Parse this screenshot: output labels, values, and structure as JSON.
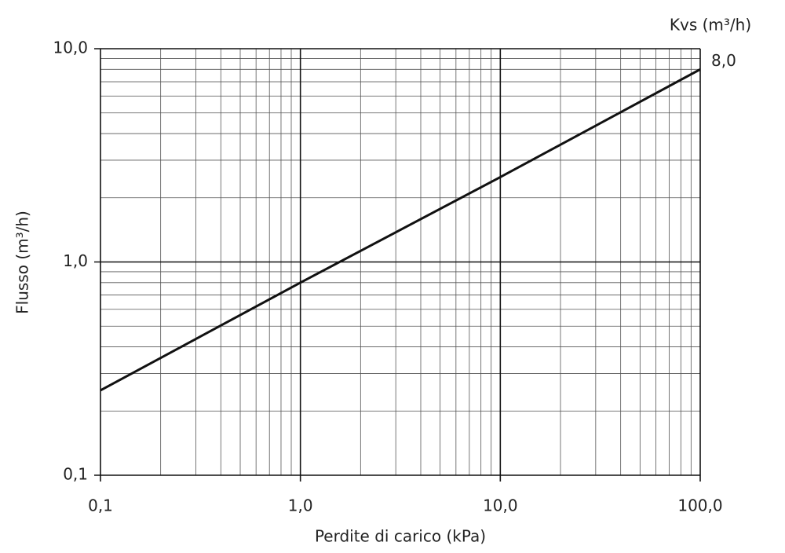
{
  "chart_data": {
    "type": "line",
    "log_x": true,
    "log_y": true,
    "grid": true,
    "xlabel": "Perdite di carico (kPa)",
    "ylabel": "Flusso (m³/h)",
    "annotation": "Kvs (m³/h)",
    "x": [
      0.1,
      1,
      10,
      100
    ],
    "values": [
      0.25,
      0.8,
      2.5,
      8.0
    ],
    "value_labels": [
      null,
      null,
      null,
      "8,0"
    ],
    "color": "#111111",
    "xlim": [
      0.1,
      100
    ],
    "ylim": [
      0.1,
      10
    ],
    "xticks": [
      {
        "value": 0.1,
        "label": "0,1"
      },
      {
        "value": 1,
        "label": "1,0"
      },
      {
        "value": 10,
        "label": "10,0"
      },
      {
        "value": 100,
        "label": "100,0"
      }
    ],
    "yticks": [
      {
        "value": 0.1,
        "label": "0,1"
      },
      {
        "value": 1,
        "label": "1,0"
      },
      {
        "value": 10,
        "label": "10,0"
      }
    ],
    "minor_xticks": [
      0.2,
      0.3,
      0.4,
      0.5,
      0.6,
      0.7,
      0.8,
      0.9,
      2,
      3,
      4,
      5,
      6,
      7,
      8,
      9,
      20,
      30,
      40,
      50,
      60,
      70,
      80,
      90
    ],
    "minor_yticks": [
      0.2,
      0.3,
      0.4,
      0.5,
      0.6,
      0.7,
      0.8,
      0.9,
      2,
      3,
      4,
      5,
      6,
      7,
      8,
      9
    ]
  }
}
